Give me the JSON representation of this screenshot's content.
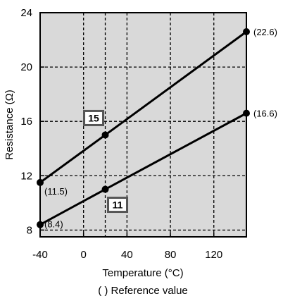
{
  "chart_data": {
    "type": "line",
    "xlabel": "Temperature (°C)",
    "ylabel": "Resistance (Ω)",
    "footnote": "( ) Reference value",
    "xlim": [
      -40,
      150
    ],
    "ylim": [
      7.5,
      24
    ],
    "x_ticks": [
      -40,
      0,
      40,
      80,
      120
    ],
    "x_tick_labels": [
      "-40",
      "0",
      "40",
      "80",
      "120"
    ],
    "y_ticks": [
      8,
      12,
      16,
      20,
      24
    ],
    "y_tick_labels": [
      "8",
      "12",
      "16",
      "20",
      "24"
    ],
    "grid": true,
    "plot_background": "#d9d9d9",
    "series": [
      {
        "points": [
          {
            "x": -40,
            "y": 11.5,
            "label": "(11.5)"
          },
          {
            "x": 20,
            "y": 15,
            "label": "15"
          },
          {
            "x": 150,
            "y": 22.6,
            "label": "(22.6)"
          }
        ]
      },
      {
        "points": [
          {
            "x": -40,
            "y": 8.4,
            "label": "(8.4)"
          },
          {
            "x": 20,
            "y": 11,
            "label": "11"
          },
          {
            "x": 150,
            "y": 16.6,
            "label": "(16.6)"
          }
        ]
      }
    ]
  }
}
